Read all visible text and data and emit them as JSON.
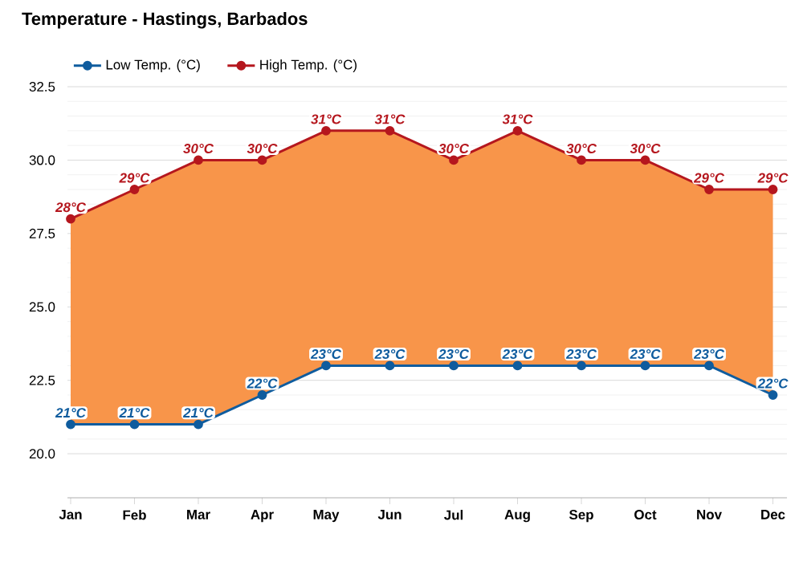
{
  "chart_data": {
    "type": "line",
    "title": "Temperature - Hastings, Barbados",
    "categories": [
      "Jan",
      "Feb",
      "Mar",
      "Apr",
      "May",
      "Jun",
      "Jul",
      "Aug",
      "Sep",
      "Oct",
      "Nov",
      "Dec"
    ],
    "series": [
      {
        "name": "Low Temp. (°C)",
        "color": "#0f5c9e",
        "values": [
          21,
          21,
          21,
          22,
          23,
          23,
          23,
          23,
          23,
          23,
          23,
          22
        ],
        "value_labels": [
          "21°C",
          "21°C",
          "21°C",
          "22°C",
          "23°C",
          "23°C",
          "23°C",
          "23°C",
          "23°C",
          "23°C",
          "23°C",
          "22°C"
        ]
      },
      {
        "name": "High Temp. (°C)",
        "type": "area",
        "color": "#b5171e",
        "values": [
          28,
          29,
          30,
          30,
          31,
          31,
          30,
          31,
          30,
          30,
          29,
          29
        ],
        "value_labels": [
          "28°C",
          "29°C",
          "30°C",
          "30°C",
          "31°C",
          "31°C",
          "30°C",
          "31°C",
          "30°C",
          "30°C",
          "29°C",
          "29°C"
        ]
      }
    ],
    "ylim": [
      18.5,
      32.5
    ],
    "yticks": [
      {
        "value": 20,
        "label": "20.0"
      },
      {
        "value": 22.5,
        "label": "22.5"
      },
      {
        "value": 25,
        "label": "25.0"
      },
      {
        "value": 27.5,
        "label": "27.5"
      },
      {
        "value": 30,
        "label": "30.0"
      },
      {
        "value": 32.5,
        "label": "32.5"
      }
    ],
    "grid": "y",
    "legend": "top left",
    "marker": "circle",
    "line_style": "solid"
  }
}
